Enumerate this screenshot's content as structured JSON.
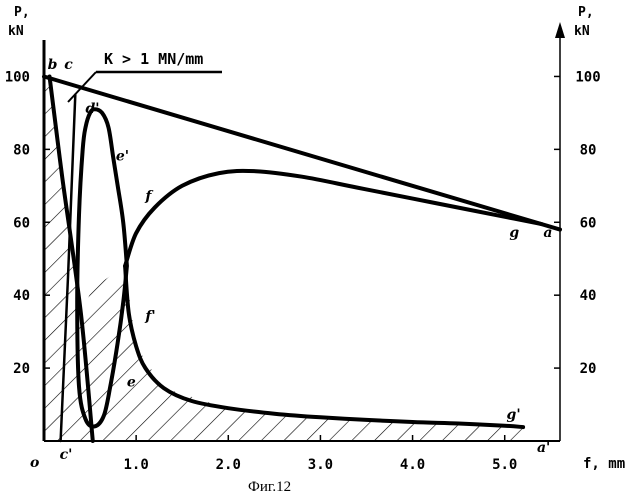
{
  "chart_data": {
    "type": "line",
    "caption": "Фиг.12",
    "xlabel": "f, mm",
    "ylabel_left": [
      "P,",
      "kN"
    ],
    "ylabel_right": [
      "P,",
      "kN"
    ],
    "xlim": [
      0,
      5.6
    ],
    "ylim": [
      0,
      110
    ],
    "x_ticks": [
      {
        "value": 1.0,
        "label": "1.0"
      },
      {
        "value": 2.0,
        "label": "2.0"
      },
      {
        "value": 3.0,
        "label": "3.0"
      },
      {
        "value": 4.0,
        "label": "4.0"
      },
      {
        "value": 5.0,
        "label": "5.0"
      }
    ],
    "y_ticks": [
      {
        "value": 20,
        "label": "20"
      },
      {
        "value": 40,
        "label": "40"
      },
      {
        "value": 60,
        "label": "60"
      },
      {
        "value": 80,
        "label": "80"
      },
      {
        "value": 100,
        "label": "100"
      }
    ],
    "origin_label": "o",
    "annotation": "K > 1 MN/mm",
    "series": [
      {
        "key": "loading_line",
        "x": [
          0,
          5.6
        ],
        "y": [
          100,
          58
        ]
      },
      {
        "key": "upper_curve",
        "x": [
          0.88,
          1.0,
          1.2,
          1.5,
          1.9,
          2.3,
          2.8,
          3.4,
          4.0,
          4.6,
          5.1,
          5.4
        ],
        "y": [
          48,
          57,
          64,
          70,
          73.5,
          74,
          72.5,
          69.5,
          66.5,
          63.5,
          61,
          59.5
        ]
      },
      {
        "key": "lower_curve",
        "x": [
          0.88,
          0.92,
          1.0,
          1.1,
          1.3,
          1.6,
          2.0,
          2.5,
          3.0,
          3.5,
          4.0,
          4.5,
          5.0,
          5.2
        ],
        "y": [
          48,
          35,
          26,
          20,
          14.5,
          11,
          9,
          7.5,
          6.5,
          5.8,
          5.2,
          4.8,
          4.2,
          3.8
        ]
      },
      {
        "key": "loop_curve",
        "x": [
          0.9,
          0.86,
          0.8,
          0.75,
          0.7,
          0.63,
          0.55,
          0.5,
          0.45,
          0.42,
          0.38,
          0.36,
          0.38,
          0.45,
          0.55,
          0.65,
          0.72,
          0.8,
          0.86,
          0.9
        ],
        "y": [
          48,
          60,
          70,
          78,
          86,
          90,
          91,
          90,
          86,
          80,
          62,
          38,
          15,
          6,
          4,
          7,
          15,
          27,
          38,
          48
        ]
      },
      {
        "key": "unloading_line",
        "x": [
          0.06,
          0.2,
          0.4,
          0.53
        ],
        "y": [
          100,
          72,
          35,
          0
        ]
      },
      {
        "key": "reload_line",
        "x": [
          0.18,
          0.26,
          0.34
        ],
        "y": [
          0,
          45,
          95
        ]
      }
    ],
    "hatched_region": {
      "x": [
        0,
        0.06,
        0.2,
        0.4,
        0.53,
        0.88,
        1.0,
        1.3,
        2.0,
        3.0,
        4.0,
        5.0,
        5.2,
        5.2,
        0
      ],
      "y": [
        100,
        100,
        72,
        35,
        42,
        48,
        26,
        14.5,
        9,
        6.5,
        5.2,
        4.2,
        3.8,
        0,
        0
      ]
    },
    "point_labels": [
      {
        "label": "b",
        "x": 0.04,
        "y": 102
      },
      {
        "label": "c",
        "x": 0.22,
        "y": 102
      },
      {
        "label": "d'",
        "x": 0.45,
        "y": 90
      },
      {
        "label": "e'",
        "x": 0.78,
        "y": 77
      },
      {
        "label": "f",
        "x": 1.1,
        "y": 66
      },
      {
        "label": "g",
        "x": 5.05,
        "y": 56
      },
      {
        "label": "a",
        "x": 5.42,
        "y": 56
      },
      {
        "label": "f'",
        "x": 1.1,
        "y": 33
      },
      {
        "label": "e",
        "x": 0.9,
        "y": 15
      },
      {
        "label": "g'",
        "x": 5.02,
        "y": 6
      },
      {
        "label": "c'",
        "x": 0.17,
        "y": -5
      },
      {
        "label": "a'",
        "x": 5.35,
        "y": -3
      }
    ]
  }
}
